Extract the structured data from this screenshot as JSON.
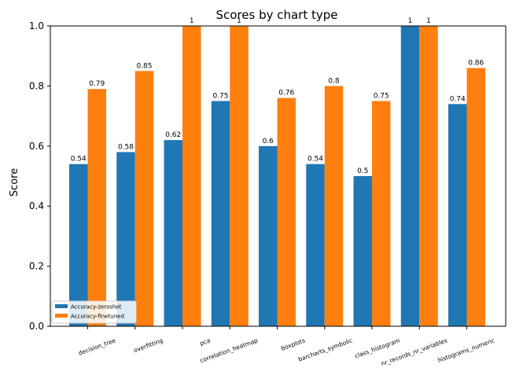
{
  "chart_data": {
    "type": "bar",
    "title": "Scores by chart type",
    "xlabel": "",
    "ylabel": "Score",
    "ylim": [
      0,
      1.0
    ],
    "yticks": [
      "0.0",
      "0.2",
      "0.4",
      "0.6",
      "0.8",
      "1.0"
    ],
    "grid": false,
    "legend_position": "lower-left",
    "categories": [
      "decision_tree",
      "overfitting",
      "pca",
      "correlation_heatmap",
      "boxplots",
      "barcharts_symbolic",
      "class_histogram",
      "nr_records_nr_variables",
      "histograms_numeric"
    ],
    "series": [
      {
        "name": "Accuracy-zeroshot",
        "color": "#1f77b4",
        "values": [
          0.54,
          0.58,
          0.62,
          0.75,
          0.6,
          0.54,
          0.5,
          1,
          0.74
        ],
        "labels": [
          "0.54",
          "0.58",
          "0.62",
          "0.75",
          "0.6",
          "0.54",
          "0.5",
          "1",
          "0.74"
        ]
      },
      {
        "name": "Accuracy-finetuned",
        "color": "#ff7f0e",
        "values": [
          0.79,
          0.85,
          1,
          1,
          0.76,
          0.8,
          0.75,
          1,
          0.86
        ],
        "labels": [
          "0.79",
          "0.85",
          "1",
          "1",
          "0.76",
          "0.8",
          "0.75",
          "1",
          "0.86"
        ]
      }
    ]
  }
}
